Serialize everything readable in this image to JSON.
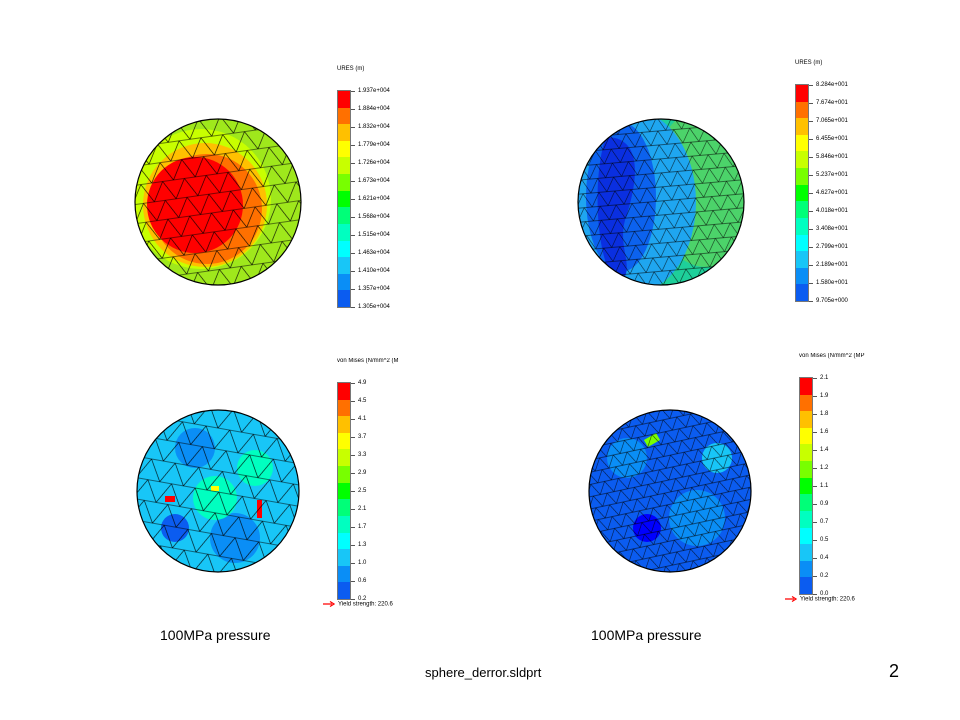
{
  "slide": {
    "filename": "sphere_derror.sldprt",
    "page_number": "2",
    "captions": [
      "100MPa pressure",
      "100MPa pressure"
    ]
  },
  "colors": {
    "scale": [
      "#0000ff",
      "#0b5cf0",
      "#0a8ef6",
      "#18c6f7",
      "#00ffff",
      "#00ffc0",
      "#00ff78",
      "#00ff00",
      "#78ff00",
      "#c8ff00",
      "#ffff00",
      "#ffc000",
      "#ff7000",
      "#ff0000"
    ],
    "mesh_line": "#000000",
    "yield_arrow": "#ff0000"
  },
  "plots": {
    "ures_left": {
      "title": "URES (m)",
      "labels": [
        "1.937e+004",
        "1.884e+004",
        "1.832e+004",
        "1.779e+004",
        "1.726e+004",
        "1.673e+004",
        "1.621e+004",
        "1.568e+004",
        "1.515e+004",
        "1.463e+004",
        "1.410e+004",
        "1.357e+004",
        "1.305e+004"
      ]
    },
    "ures_right": {
      "title": "URES (m)",
      "labels": [
        "8.284e+001",
        "7.674e+001",
        "7.065e+001",
        "6.455e+001",
        "5.846e+001",
        "5.237e+001",
        "4.627e+001",
        "4.018e+001",
        "3.408e+001",
        "2.799e+001",
        "2.189e+001",
        "1.580e+001",
        "9.705e+000"
      ]
    },
    "vm_left": {
      "title": "von Mises (N/mm^2 (M",
      "labels": [
        "4.9",
        "4.5",
        "4.1",
        "3.7",
        "3.3",
        "2.9",
        "2.5",
        "2.1",
        "1.7",
        "1.3",
        "1.0",
        "0.6",
        "0.2"
      ],
      "yield": "Yield strength: 220.6"
    },
    "vm_right": {
      "title": "von Mises (N/mm^2 (MP",
      "labels": [
        "2.1",
        "1.9",
        "1.8",
        "1.6",
        "1.4",
        "1.2",
        "1.1",
        "0.9",
        "0.7",
        "0.5",
        "0.4",
        "0.2",
        "0.0"
      ],
      "yield": "Yield strength: 220.6"
    }
  }
}
